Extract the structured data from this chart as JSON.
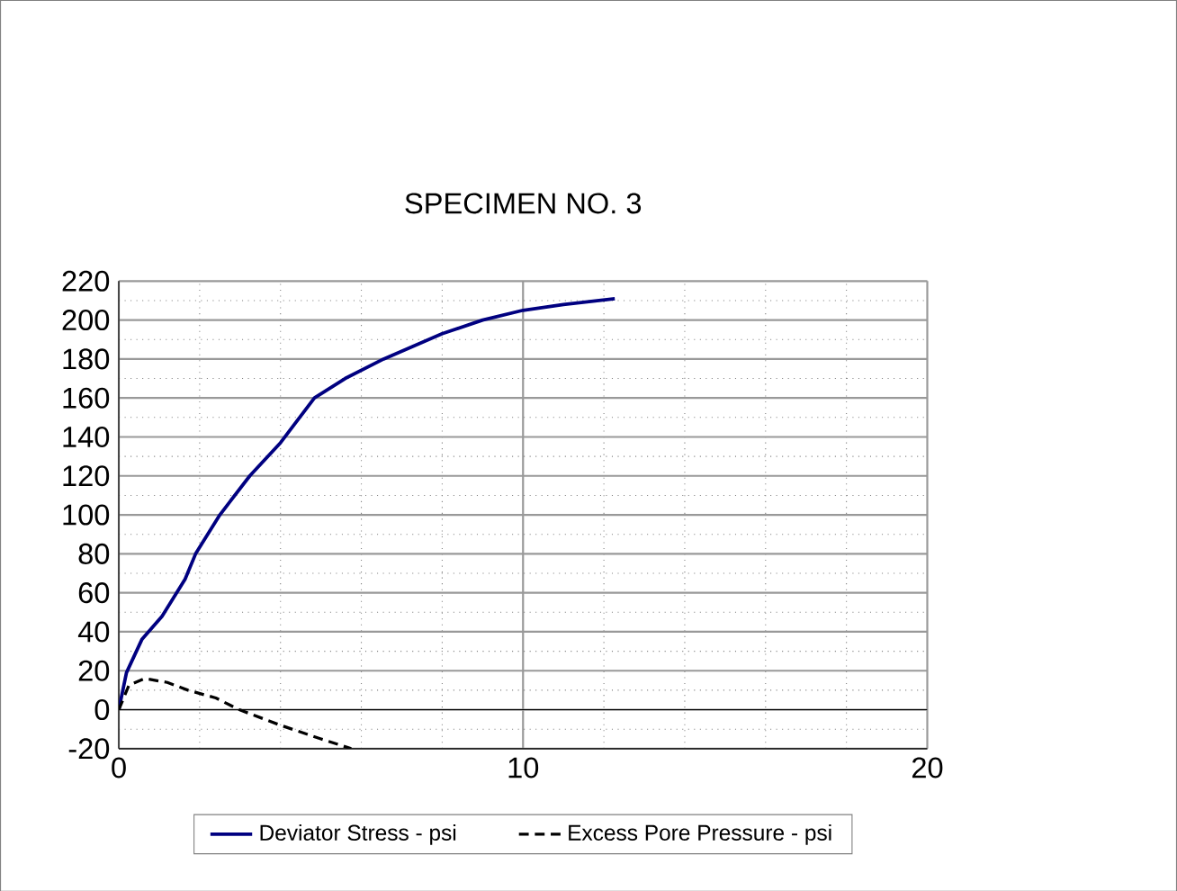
{
  "chart_data": {
    "type": "line",
    "title": "SPECIMEN NO. 3",
    "xlim": [
      0,
      20
    ],
    "xticks": [
      0,
      10,
      20
    ],
    "ylim": [
      -20,
      220
    ],
    "yticks": [
      -20,
      0,
      20,
      40,
      60,
      80,
      100,
      120,
      140,
      160,
      180,
      200,
      220
    ],
    "grid": true,
    "legend": "bottom",
    "marker": "none",
    "series": [
      {
        "name": "Deviator Stress - psi",
        "color": "#000080",
        "line_style": "solid",
        "x": [
          0,
          0.19,
          0.57,
          1.07,
          1.64,
          1.9,
          2.5,
          3.24,
          4.0,
          4.84,
          5.6,
          6.55,
          8,
          9,
          10,
          11,
          12.27
        ],
        "values": [
          0,
          19,
          36,
          48,
          67,
          80,
          100,
          120,
          137,
          160,
          170,
          180,
          193,
          200,
          205,
          208,
          211
        ]
      },
      {
        "name": "Excess Pore Pressure - psi",
        "color": "#000000",
        "line_style": "dashed",
        "x": [
          0,
          0.25,
          0.64,
          1.2,
          1.71,
          2.4,
          2.98,
          4,
          5,
          5.75
        ],
        "values": [
          0,
          12.5,
          16,
          14,
          10,
          6,
          0,
          -8,
          -15,
          -20
        ]
      }
    ]
  }
}
